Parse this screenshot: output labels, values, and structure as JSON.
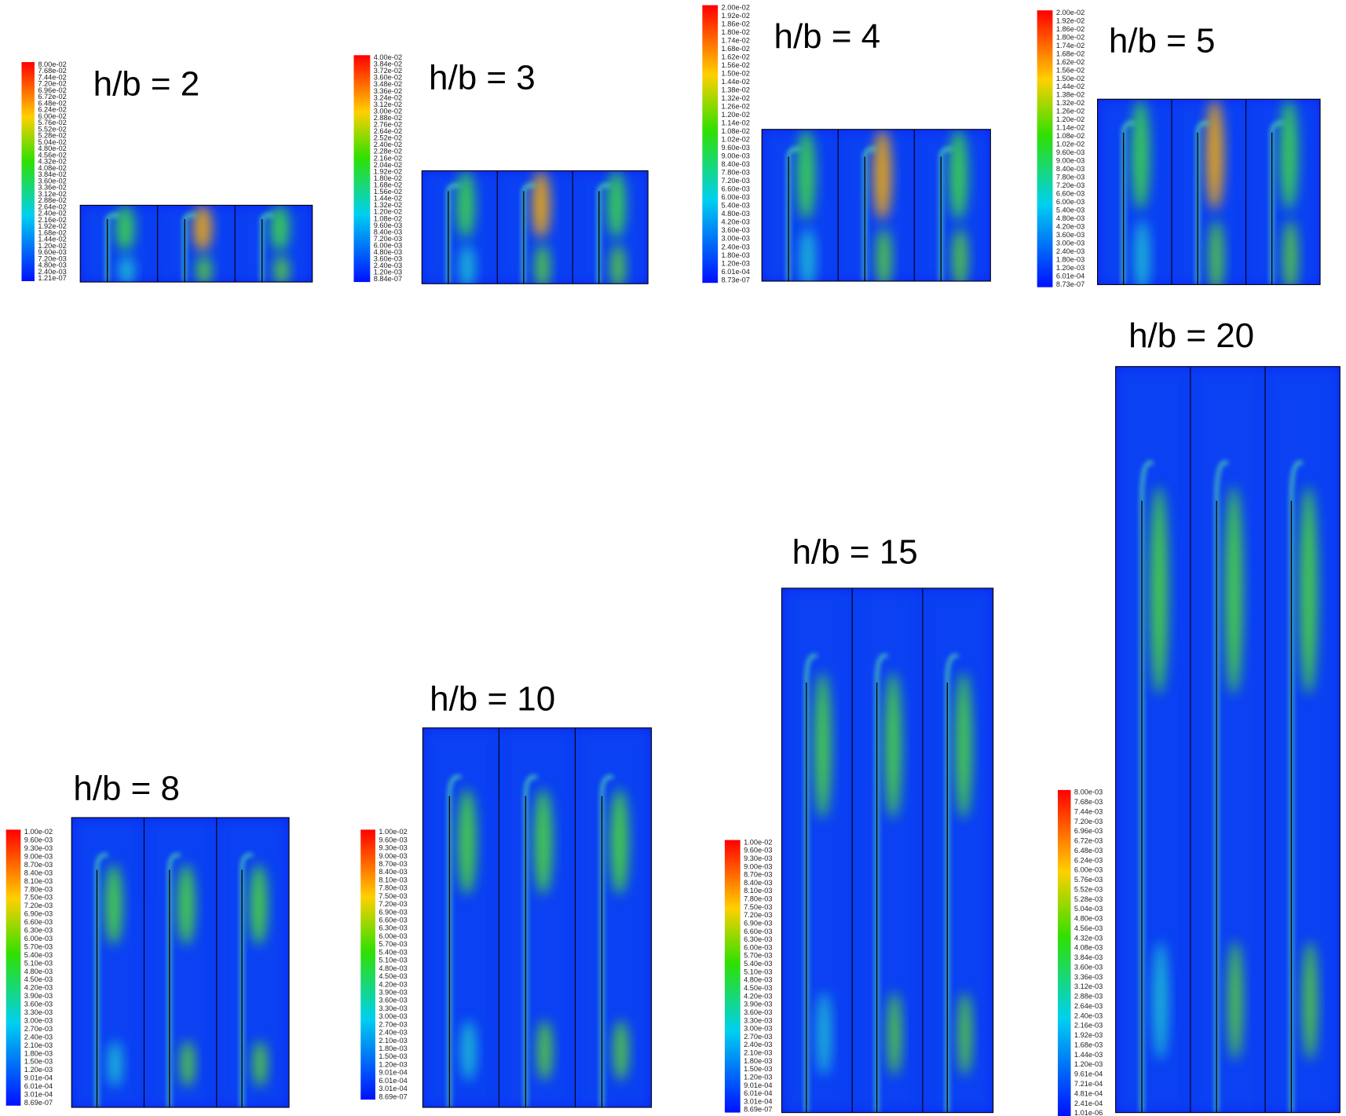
{
  "panels": [
    {
      "title": "h/b = 2",
      "colorbar": [
        "8.00e-02",
        "7.68e-02",
        "7.44e-02",
        "7.20e-02",
        "6.96e-02",
        "6.72e-02",
        "6.48e-02",
        "6.24e-02",
        "6.00e-02",
        "5.76e-02",
        "5.52e-02",
        "5.28e-02",
        "5.04e-02",
        "4.80e-02",
        "4.56e-02",
        "4.32e-02",
        "4.08e-02",
        "3.84e-02",
        "3.60e-02",
        "3.36e-02",
        "3.12e-02",
        "2.88e-02",
        "2.64e-02",
        "2.40e-02",
        "2.16e-02",
        "1.92e-02",
        "1.68e-02",
        "1.44e-02",
        "1.20e-02",
        "9.60e-03",
        "7.20e-03",
        "4.80e-03",
        "2.40e-03",
        "1.21e-07"
      ]
    },
    {
      "title": "h/b = 3",
      "colorbar": [
        "4.00e-02",
        "3.84e-02",
        "3.72e-02",
        "3.60e-02",
        "3.48e-02",
        "3.36e-02",
        "3.24e-02",
        "3.12e-02",
        "3.00e-02",
        "2.88e-02",
        "2.76e-02",
        "2.64e-02",
        "2.52e-02",
        "2.40e-02",
        "2.28e-02",
        "2.16e-02",
        "2.04e-02",
        "1.92e-02",
        "1.80e-02",
        "1.68e-02",
        "1.56e-02",
        "1.44e-02",
        "1.32e-02",
        "1.20e-02",
        "1.08e-02",
        "9.60e-03",
        "8.40e-03",
        "7.20e-03",
        "6.00e-03",
        "4.80e-03",
        "3.60e-03",
        "2.40e-03",
        "1.20e-03",
        "8.84e-07"
      ]
    },
    {
      "title": "h/b = 4",
      "colorbar": [
        "2.00e-02",
        "1.92e-02",
        "1.86e-02",
        "1.80e-02",
        "1.74e-02",
        "1.68e-02",
        "1.62e-02",
        "1.56e-02",
        "1.50e-02",
        "1.44e-02",
        "1.38e-02",
        "1.32e-02",
        "1.26e-02",
        "1.20e-02",
        "1.14e-02",
        "1.08e-02",
        "1.02e-02",
        "9.60e-03",
        "9.00e-03",
        "8.40e-03",
        "7.80e-03",
        "7.20e-03",
        "6.60e-03",
        "6.00e-03",
        "5.40e-03",
        "4.80e-03",
        "4.20e-03",
        "3.60e-03",
        "3.00e-03",
        "2.40e-03",
        "1.80e-03",
        "1.20e-03",
        "6.01e-04",
        "8.73e-07"
      ]
    },
    {
      "title": "h/b = 5",
      "colorbar": [
        "2.00e-02",
        "1.92e-02",
        "1.86e-02",
        "1.80e-02",
        "1.74e-02",
        "1.68e-02",
        "1.62e-02",
        "1.56e-02",
        "1.50e-02",
        "1.44e-02",
        "1.38e-02",
        "1.32e-02",
        "1.26e-02",
        "1.20e-02",
        "1.14e-02",
        "1.08e-02",
        "1.02e-02",
        "9.60e-03",
        "9.00e-03",
        "8.40e-03",
        "7.80e-03",
        "7.20e-03",
        "6.60e-03",
        "6.00e-03",
        "5.40e-03",
        "4.80e-03",
        "4.20e-03",
        "3.60e-03",
        "3.00e-03",
        "2.40e-03",
        "1.80e-03",
        "1.20e-03",
        "6.01e-04",
        "8.73e-07"
      ]
    },
    {
      "title": "h/b = 8",
      "colorbar": [
        "1.00e-02",
        "9.60e-03",
        "9.30e-03",
        "9.00e-03",
        "8.70e-03",
        "8.40e-03",
        "8.10e-03",
        "7.80e-03",
        "7.50e-03",
        "7.20e-03",
        "6.90e-03",
        "6.60e-03",
        "6.30e-03",
        "6.00e-03",
        "5.70e-03",
        "5.40e-03",
        "5.10e-03",
        "4.80e-03",
        "4.50e-03",
        "4.20e-03",
        "3.90e-03",
        "3.60e-03",
        "3.30e-03",
        "3.00e-03",
        "2.70e-03",
        "2.40e-03",
        "2.10e-03",
        "1.80e-03",
        "1.50e-03",
        "1.20e-03",
        "9.01e-04",
        "6.01e-04",
        "3.01e-04",
        "8.69e-07"
      ]
    },
    {
      "title": "h/b = 10",
      "colorbar": [
        "1.00e-02",
        "9.60e-03",
        "9.30e-03",
        "9.00e-03",
        "8.70e-03",
        "8.40e-03",
        "8.10e-03",
        "7.80e-03",
        "7.50e-03",
        "7.20e-03",
        "6.90e-03",
        "6.60e-03",
        "6.30e-03",
        "6.00e-03",
        "5.70e-03",
        "5.40e-03",
        "5.10e-03",
        "4.80e-03",
        "4.50e-03",
        "4.20e-03",
        "3.90e-03",
        "3.60e-03",
        "3.30e-03",
        "3.00e-03",
        "2.70e-03",
        "2.40e-03",
        "2.10e-03",
        "1.80e-03",
        "1.50e-03",
        "1.20e-03",
        "9.01e-04",
        "6.01e-04",
        "3.01e-04",
        "8.69e-07"
      ]
    },
    {
      "title": "h/b = 15",
      "colorbar": [
        "1.00e-02",
        "9.60e-03",
        "9.30e-03",
        "9.00e-03",
        "8.70e-03",
        "8.40e-03",
        "8.10e-03",
        "7.80e-03",
        "7.50e-03",
        "7.20e-03",
        "6.90e-03",
        "6.60e-03",
        "6.30e-03",
        "6.00e-03",
        "5.70e-03",
        "5.40e-03",
        "5.10e-03",
        "4.80e-03",
        "4.50e-03",
        "4.20e-03",
        "3.90e-03",
        "3.60e-03",
        "3.30e-03",
        "3.00e-03",
        "2.70e-03",
        "2.40e-03",
        "2.10e-03",
        "1.80e-03",
        "1.50e-03",
        "1.20e-03",
        "9.01e-04",
        "6.01e-04",
        "3.01e-04",
        "8.69e-07"
      ]
    },
    {
      "title": "h/b = 20",
      "colorbar": [
        "8.00e-03",
        "7.68e-03",
        "7.44e-03",
        "7.20e-03",
        "6.96e-03",
        "6.72e-03",
        "6.48e-03",
        "6.24e-03",
        "6.00e-03",
        "5.76e-03",
        "5.52e-03",
        "5.28e-03",
        "5.04e-03",
        "4.80e-03",
        "4.56e-03",
        "4.32e-03",
        "4.08e-03",
        "3.84e-03",
        "3.60e-03",
        "3.36e-03",
        "3.12e-03",
        "2.88e-03",
        "2.64e-03",
        "2.40e-03",
        "2.16e-03",
        "1.92e-03",
        "1.68e-03",
        "1.44e-03",
        "1.20e-03",
        "9.61e-04",
        "7.21e-04",
        "4.81e-04",
        "2.41e-04",
        "1.01e-06"
      ]
    }
  ]
}
